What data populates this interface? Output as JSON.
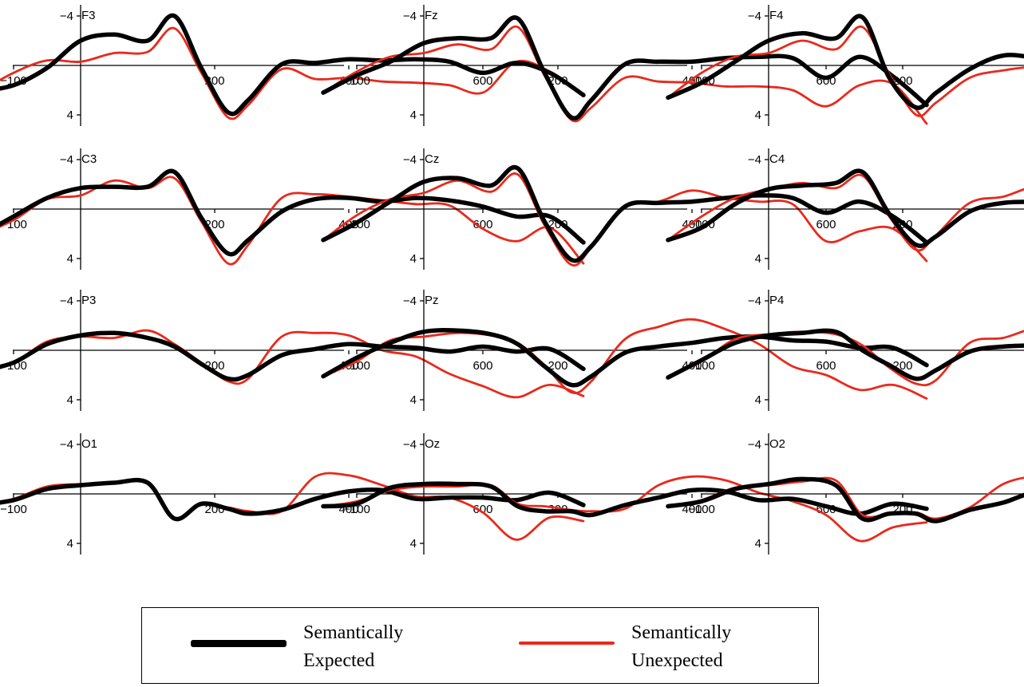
{
  "chart_data": {
    "type": "line",
    "title": "",
    "xlabel": "",
    "ylabel": "",
    "x_ticks": [
      -100,
      200,
      400,
      600
    ],
    "y_ticks": [
      -4,
      4
    ],
    "y_tick_labels": [
      "−4",
      "4"
    ],
    "x_tick_labels": [
      "−100",
      "200",
      "400",
      "600"
    ],
    "xlim": [
      -150,
      760
    ],
    "ylim": [
      -4.8,
      4.6
    ],
    "y_inverted": true,
    "grid": false,
    "legend_position": "bottom",
    "series_styles": [
      {
        "name": "Semantically Expected",
        "color": "#000000",
        "width": 5.5
      },
      {
        "name": "Semantically Unexpected",
        "color": "#e8291c",
        "width": 2.8
      }
    ],
    "x": [
      -150,
      -100,
      -50,
      0,
      50,
      100,
      140,
      180,
      220,
      250,
      300,
      350,
      400,
      450,
      500,
      550,
      600,
      650,
      700,
      750
    ],
    "panels": [
      {
        "channel": "F3",
        "expected": [
          2.1,
          1.6,
          0.2,
          -2.0,
          -2.5,
          -2.0,
          -4.0,
          0.2,
          3.8,
          2.8,
          -0.1,
          -0.2,
          -0.5,
          -0.4,
          -0.5,
          -0.3,
          0.6,
          -0.2,
          0.6,
          2.4
        ],
        "unexpected": [
          2.1,
          0.6,
          -0.4,
          -0.3,
          -1.0,
          -1.1,
          -3.0,
          0.6,
          4.2,
          3.2,
          0.3,
          1.1,
          1.0,
          1.3,
          1.4,
          1.6,
          2.2,
          -0.3,
          0.5,
          2.3
        ]
      },
      {
        "channel": "Fz",
        "expected": [
          2.2,
          0.8,
          -0.3,
          -1.8,
          -2.2,
          -2.2,
          -3.8,
          0.6,
          4.2,
          2.8,
          -0.1,
          -0.3,
          -0.3,
          -0.6,
          -0.7,
          -0.6,
          1.0,
          -0.7,
          0.9,
          3.2
        ],
        "unexpected": [
          2.2,
          0.5,
          -0.7,
          -1.0,
          -1.7,
          -1.3,
          -3.1,
          0.8,
          4.4,
          3.4,
          1.0,
          1.3,
          1.4,
          1.7,
          1.7,
          2.0,
          3.3,
          1.6,
          1.5,
          4.7
        ]
      },
      {
        "channel": "F4",
        "expected": [
          2.6,
          1.4,
          -0.3,
          -2.0,
          -2.6,
          -2.2,
          -3.9,
          1.0,
          3.4,
          2.2,
          0.3,
          -0.8,
          -0.6,
          -0.2,
          -0.5,
          -0.1,
          0.5,
          -1.1,
          1.0,
          3.4
        ],
        "unexpected": [
          2.6,
          0.6,
          -0.7,
          -1.0,
          -2.0,
          -1.3,
          -3.1,
          0.7,
          4.0,
          3.0,
          1.0,
          0.4,
          0.1,
          0.3,
          0.1,
          0.6,
          0.9,
          -0.6,
          1.5,
          4.0
        ]
      },
      {
        "channel": "C3",
        "expected": [
          2.1,
          0.6,
          -0.9,
          -1.7,
          -1.8,
          -1.8,
          -3.0,
          0.7,
          3.6,
          2.5,
          0.2,
          -0.8,
          -0.9,
          -0.6,
          -0.9,
          -0.7,
          -0.2,
          0.6,
          0.6,
          2.7
        ],
        "unexpected": [
          2.1,
          0.9,
          -0.8,
          -1.1,
          -2.3,
          -1.7,
          -2.5,
          1.0,
          4.4,
          2.9,
          -0.9,
          -1.2,
          -1.0,
          -0.7,
          -0.4,
          -0.3,
          1.6,
          2.6,
          1.5,
          4.4
        ]
      },
      {
        "channel": "Cz",
        "expected": [
          2.5,
          1.1,
          -0.6,
          -2.2,
          -2.5,
          -1.9,
          -3.3,
          1.0,
          4.1,
          3.0,
          -0.2,
          -0.5,
          -0.6,
          -0.9,
          -1.1,
          -0.9,
          0.3,
          -0.6,
          0.6,
          2.7
        ],
        "unexpected": [
          2.5,
          0.5,
          -0.8,
          -1.3,
          -2.3,
          -1.4,
          -2.8,
          1.3,
          4.5,
          3.1,
          -0.3,
          -0.6,
          -1.5,
          -0.9,
          -0.6,
          -0.4,
          2.6,
          1.8,
          1.6,
          4.2
        ]
      },
      {
        "channel": "C4",
        "expected": [
          2.5,
          1.5,
          -0.4,
          -1.6,
          -1.9,
          -2.1,
          -3.0,
          0.4,
          2.9,
          2.2,
          0.2,
          -0.5,
          -0.6,
          -0.8,
          -0.9,
          -0.9,
          -0.4,
          -0.4,
          0.5,
          2.2
        ],
        "unexpected": [
          2.5,
          0.6,
          -0.9,
          -1.6,
          -2.1,
          -1.7,
          -2.7,
          0.6,
          3.3,
          2.1,
          -0.5,
          -1.0,
          -1.8,
          -1.0,
          -0.5,
          -0.3,
          0.6,
          0.8,
          1.0,
          3.5
        ]
      },
      {
        "channel": "P3",
        "expected": [
          1.7,
          1.0,
          -0.5,
          -1.2,
          -1.4,
          -1.0,
          -0.3,
          1.1,
          2.3,
          2.0,
          0.4,
          -0.1,
          -0.5,
          -0.3,
          -0.2,
          0.1,
          -0.3,
          0.1,
          -0.1,
          1.5
        ],
        "unexpected": [
          1.7,
          1.0,
          -0.7,
          -1.1,
          -1.0,
          -1.6,
          -0.5,
          1.0,
          2.5,
          2.3,
          -1.1,
          -1.4,
          -1.2,
          0.0,
          0.5,
          1.9,
          2.9,
          3.8,
          2.8,
          3.7
        ]
      },
      {
        "channel": "Pz",
        "expected": [
          2.1,
          0.6,
          -0.6,
          -1.5,
          -1.6,
          -1.3,
          -0.5,
          1.3,
          2.8,
          2.1,
          0.2,
          -0.3,
          -0.6,
          -1.0,
          -1.1,
          -0.8,
          -0.7,
          -0.2,
          -0.2,
          1.2
        ],
        "unexpected": [
          2.1,
          0.9,
          -0.8,
          -1.1,
          -1.4,
          -1.2,
          -0.6,
          1.2,
          3.4,
          2.5,
          -0.9,
          -1.9,
          -2.5,
          -1.7,
          -0.5,
          1.3,
          2.0,
          3.2,
          2.8,
          3.9
        ]
      },
      {
        "channel": "P4",
        "expected": [
          2.2,
          0.8,
          -0.6,
          -1.2,
          -1.4,
          -1.5,
          0.0,
          1.2,
          2.3,
          1.6,
          0.1,
          -0.3,
          -0.4,
          -0.4,
          -0.7,
          -0.6,
          -0.8,
          0.3,
          -0.4,
          1.1
        ],
        "unexpected": [
          2.2,
          0.9,
          -0.9,
          -1.3,
          -1.5,
          -1.3,
          -0.4,
          1.4,
          2.7,
          2.4,
          -0.6,
          -1.0,
          -1.8,
          -1.5,
          -0.4,
          0.9,
          2.2,
          3.4,
          2.6,
          4.1
        ]
      },
      {
        "channel": "O1",
        "expected": [
          0.9,
          0.5,
          -0.4,
          -0.7,
          -0.9,
          -0.9,
          2.0,
          0.8,
          1.2,
          1.6,
          1.3,
          0.4,
          -0.2,
          -0.3,
          0.4,
          0.3,
          0.3,
          0.5,
          -0.1,
          0.9
        ],
        "unexpected": [
          0.9,
          0.4,
          -0.6,
          -0.8,
          -0.9,
          -1.0,
          1.9,
          0.9,
          1.1,
          1.4,
          1.4,
          -1.4,
          -1.5,
          -0.7,
          0.2,
          0.3,
          1.5,
          3.7,
          1.9,
          2.2
        ]
      },
      {
        "channel": "Oz",
        "expected": [
          1.0,
          0.8,
          -0.5,
          -0.8,
          -0.8,
          -0.6,
          1.0,
          1.4,
          1.4,
          1.7,
          0.9,
          0.3,
          -0.3,
          -0.2,
          0.5,
          0.4,
          1.0,
          1.6,
          0.8,
          1.2
        ],
        "unexpected": [
          1.0,
          0.6,
          -0.3,
          -0.6,
          -0.6,
          -0.7,
          0.8,
          1.0,
          1.3,
          1.4,
          1.2,
          -0.7,
          -1.4,
          -1.1,
          -0.1,
          0.6,
          1.7,
          3.8,
          2.7,
          2.3
        ]
      },
      {
        "channel": "O2",
        "expected": [
          1.0,
          0.6,
          -0.4,
          -0.8,
          -1.2,
          -0.7,
          2.0,
          1.6,
          1.6,
          2.2,
          1.3,
          0.7,
          -0.2,
          -0.1,
          0.2,
          0.4,
          1.4,
          2.3,
          0.7,
          1.5
        ],
        "unexpected": [
          1.0,
          0.5,
          -0.5,
          -0.7,
          -1.0,
          -1.1,
          1.7,
          1.6,
          1.5,
          2.0,
          1.1,
          -0.8,
          -1.5,
          -1.9,
          -0.6,
          0.0,
          1.6,
          3.6,
          1.7,
          2.4
        ]
      }
    ]
  },
  "legend": {
    "items": [
      {
        "line1": "Semantically",
        "line2": "Expected",
        "color": "#000000"
      },
      {
        "line1": "Semantically",
        "line2": "Unexpected",
        "color": "#e8291c"
      }
    ]
  }
}
